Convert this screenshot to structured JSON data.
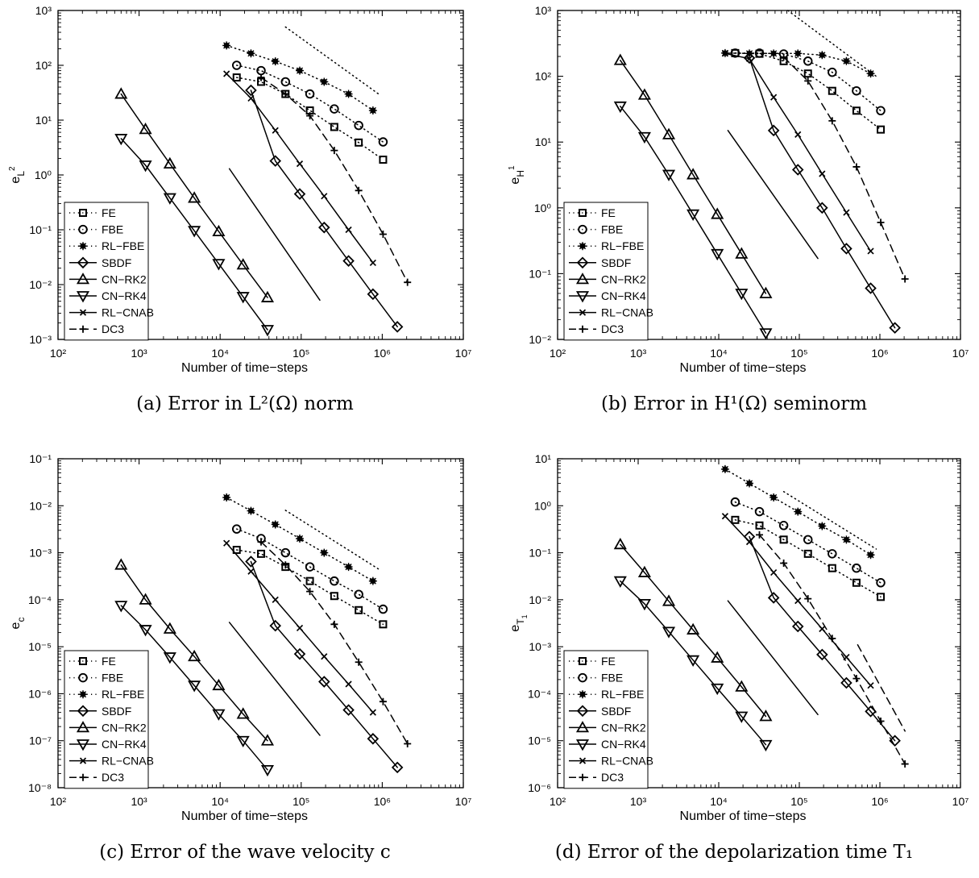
{
  "legend": [
    "FE",
    "FBE",
    "RL−FBE",
    "SBDF",
    "CN−RK2",
    "CN−RK4",
    "RL−CNAB",
    "DC3"
  ],
  "chart_data": [
    {
      "type": "line",
      "caption": "(a) Error in L²(Ω) norm",
      "xlabel": "Number of time−steps",
      "ylabel_base": "e",
      "ylabel_sub": "L",
      "ylabel_sup": "2",
      "xscale": "log",
      "yscale": "log",
      "xlim": [
        100,
        10000000
      ],
      "ylim": [
        0.001,
        1000
      ],
      "xticks": [
        "10²",
        "10³",
        "10⁴",
        "10⁵",
        "10⁶",
        "10⁷"
      ],
      "yticks": [
        "10⁻³",
        "10⁻²",
        "10⁻¹",
        "10⁰",
        "10¹",
        "10²",
        "10³"
      ],
      "series": [
        {
          "name": "FE",
          "style": "dotted",
          "marker": "square",
          "x": [
            16000,
            32000,
            64000,
            128000,
            256000,
            512000,
            1024000
          ],
          "y": [
            60,
            50,
            30,
            15,
            7.5,
            3.9,
            1.9
          ]
        },
        {
          "name": "FBE",
          "style": "dotted",
          "marker": "circle",
          "x": [
            16000,
            32000,
            64000,
            128000,
            256000,
            512000,
            1024000
          ],
          "y": [
            100,
            80,
            50,
            30,
            16,
            8,
            4
          ]
        },
        {
          "name": "RL−FBE",
          "style": "dotted",
          "marker": "star",
          "x": [
            12000,
            24000,
            48000,
            96000,
            192000,
            384000,
            768000
          ],
          "y": [
            230,
            165,
            118,
            80,
            50,
            30,
            15
          ]
        },
        {
          "name": "SBDF",
          "style": "solid",
          "marker": "diamond",
          "x": [
            24000,
            48000,
            96000,
            192000,
            384000,
            768000,
            1536000
          ],
          "y": [
            35,
            1.8,
            0.45,
            0.11,
            0.027,
            0.0067,
            0.0017
          ]
        },
        {
          "name": "CN−RK2",
          "style": "solid",
          "marker": "triangle-up",
          "x": [
            600,
            1200,
            2400,
            4800,
            9600,
            19200,
            38400
          ],
          "y": [
            30,
            6.8,
            1.6,
            0.38,
            0.093,
            0.023,
            0.0058
          ]
        },
        {
          "name": "CN−RK4",
          "style": "solid",
          "marker": "triangle-down",
          "x": [
            600,
            1200,
            2400,
            4800,
            9600,
            19200,
            38400
          ],
          "y": [
            4.6,
            1.5,
            0.38,
            0.096,
            0.024,
            0.006,
            0.0015
          ]
        },
        {
          "name": "RL−CNAB",
          "style": "solid",
          "marker": "x",
          "x": [
            12000,
            24000,
            48000,
            96000,
            192000,
            384000,
            768000
          ],
          "y": [
            70,
            25,
            6.5,
            1.6,
            0.41,
            0.1,
            0.025
          ]
        },
        {
          "name": "DC3",
          "style": "dashed",
          "marker": "plus",
          "x": [
            32000,
            64000,
            128000,
            256000,
            512000,
            1024000,
            2048000
          ],
          "y": [
            60,
            30,
            12,
            2.8,
            0.52,
            0.083,
            0.011
          ]
        }
      ],
      "ref_lines": [
        {
          "style": "dotted",
          "x": [
            64000,
            900000
          ],
          "y": [
            500,
            30
          ]
        },
        {
          "style": "solid",
          "x": [
            13000,
            170000
          ],
          "y": [
            1.3,
            0.0052
          ]
        }
      ]
    },
    {
      "type": "line",
      "caption": "(b) Error in H¹(Ω) seminorm",
      "xlabel": "Number of time−steps",
      "ylabel_base": "e",
      "ylabel_sub": "H",
      "ylabel_sup": "1",
      "xscale": "log",
      "yscale": "log",
      "xlim": [
        100,
        10000000
      ],
      "ylim": [
        0.01,
        1000
      ],
      "xticks": [
        "10²",
        "10³",
        "10⁴",
        "10⁵",
        "10⁶",
        "10⁷"
      ],
      "yticks": [
        "10⁻²",
        "10⁻¹",
        "10⁰",
        "10¹",
        "10²",
        "10³"
      ],
      "series": [
        {
          "name": "FE",
          "style": "dotted",
          "marker": "square",
          "x": [
            16000,
            32000,
            64000,
            128000,
            256000,
            512000,
            1024000
          ],
          "y": [
            225,
            220,
            170,
            110,
            60,
            30,
            15.5
          ]
        },
        {
          "name": "FBE",
          "style": "dotted",
          "marker": "circle",
          "x": [
            16000,
            32000,
            64000,
            128000,
            256000,
            512000,
            1024000
          ],
          "y": [
            225,
            225,
            218,
            170,
            115,
            60,
            30
          ]
        },
        {
          "name": "RL−FBE",
          "style": "dotted",
          "marker": "star",
          "x": [
            12000,
            24000,
            48000,
            96000,
            192000,
            384000,
            768000
          ],
          "y": [
            225,
            222,
            222,
            222,
            210,
            170,
            110
          ]
        },
        {
          "name": "SBDF",
          "style": "solid",
          "marker": "diamond",
          "x": [
            24000,
            48000,
            96000,
            192000,
            384000,
            768000,
            1536000
          ],
          "y": [
            190,
            15,
            3.8,
            1.0,
            0.24,
            0.06,
            0.015
          ]
        },
        {
          "name": "CN−RK2",
          "style": "solid",
          "marker": "triangle-up",
          "x": [
            600,
            1200,
            2400,
            4800,
            9600,
            19200,
            38400
          ],
          "y": [
            175,
            52,
            13,
            3.2,
            0.8,
            0.2,
            0.05
          ]
        },
        {
          "name": "CN−RK4",
          "style": "solid",
          "marker": "triangle-down",
          "x": [
            600,
            1200,
            2400,
            4800,
            9600,
            19200,
            38400
          ],
          "y": [
            35,
            12,
            3.2,
            0.8,
            0.2,
            0.05,
            0.0125
          ]
        },
        {
          "name": "RL−CNAB",
          "style": "solid",
          "marker": "x",
          "x": [
            12000,
            24000,
            48000,
            96000,
            192000,
            384000,
            768000
          ],
          "y": [
            222,
            185,
            48,
            13,
            3.3,
            0.85,
            0.22
          ]
        },
        {
          "name": "DC3",
          "style": "dashed",
          "marker": "plus",
          "x": [
            64000,
            128000,
            256000,
            512000,
            1024000,
            2048000
          ],
          "y": [
            195,
            85,
            21,
            4.2,
            0.6,
            0.083
          ]
        }
      ],
      "ref_lines": [
        {
          "style": "dotted",
          "x": [
            72000,
            900000
          ],
          "y": [
            1000,
            100
          ]
        },
        {
          "style": "solid",
          "x": [
            13000,
            170000
          ],
          "y": [
            15,
            0.17
          ]
        }
      ]
    },
    {
      "type": "line",
      "caption": "(c) Error of the wave velocity c",
      "xlabel": "Number of time−steps",
      "ylabel_base": "e",
      "ylabel_sub": "c",
      "ylabel_sup": "",
      "xscale": "log",
      "yscale": "log",
      "xlim": [
        100,
        10000000
      ],
      "ylim": [
        1e-08,
        0.1
      ],
      "xticks": [
        "10²",
        "10³",
        "10⁴",
        "10⁵",
        "10⁶",
        "10⁷"
      ],
      "yticks": [
        "10⁻⁸",
        "10⁻⁷",
        "10⁻⁶",
        "10⁻⁵",
        "10⁻⁴",
        "10⁻³",
        "10⁻²",
        "10⁻¹"
      ],
      "series": [
        {
          "name": "FE",
          "style": "dotted",
          "marker": "square",
          "x": [
            16000,
            32000,
            64000,
            128000,
            256000,
            512000,
            1024000
          ],
          "y": [
            0.00115,
            0.00095,
            0.0005,
            0.00025,
            0.00012,
            6e-05,
            3e-05
          ]
        },
        {
          "name": "FBE",
          "style": "dotted",
          "marker": "circle",
          "x": [
            16000,
            32000,
            64000,
            128000,
            256000,
            512000,
            1024000
          ],
          "y": [
            0.0032,
            0.002,
            0.001,
            0.0005,
            0.00025,
            0.00013,
            6.3e-05
          ]
        },
        {
          "name": "RL−FBE",
          "style": "dotted",
          "marker": "star",
          "x": [
            12000,
            24000,
            48000,
            96000,
            192000,
            384000,
            768000
          ],
          "y": [
            0.015,
            0.0078,
            0.004,
            0.002,
            0.001,
            0.0005,
            0.00025
          ]
        },
        {
          "name": "SBDF",
          "style": "solid",
          "marker": "diamond",
          "x": [
            24000,
            48000,
            96000,
            192000,
            384000,
            768000,
            1536000
          ],
          "y": [
            0.00065,
            2.8e-05,
            7e-06,
            1.8e-06,
            4.5e-07,
            1.1e-07,
            2.7e-08
          ]
        },
        {
          "name": "CN−RK2",
          "style": "solid",
          "marker": "triangle-up",
          "x": [
            600,
            1200,
            2400,
            4800,
            9600,
            19200,
            38400
          ],
          "y": [
            0.00055,
            0.0001,
            2.4e-05,
            6.2e-06,
            1.5e-06,
            3.7e-07,
            1e-07
          ]
        },
        {
          "name": "CN−RK4",
          "style": "solid",
          "marker": "triangle-down",
          "x": [
            600,
            1200,
            2400,
            4800,
            9600,
            19200,
            38400
          ],
          "y": [
            7.5e-05,
            2.3e-05,
            6e-06,
            1.5e-06,
            3.7e-07,
            1e-07,
            2.4e-08
          ]
        },
        {
          "name": "RL−CNAB",
          "style": "solid",
          "marker": "x",
          "x": [
            12000,
            24000,
            48000,
            96000,
            192000,
            384000,
            768000
          ],
          "y": [
            0.0016,
            0.0004,
            0.0001,
            2.5e-05,
            6.2e-06,
            1.6e-06,
            4e-07
          ]
        },
        {
          "name": "DC3",
          "style": "dashed",
          "marker": "plus",
          "x": [
            32000,
            64000,
            128000,
            256000,
            512000,
            1024000,
            2048000
          ],
          "y": [
            0.0017,
            0.00055,
            0.00015,
            3e-05,
            4.7e-06,
            6.8e-07,
            8.6e-08
          ]
        }
      ],
      "ref_lines": [
        {
          "style": "dotted",
          "x": [
            64000,
            900000
          ],
          "y": [
            0.008,
            0.00045
          ]
        },
        {
          "style": "solid",
          "x": [
            13000,
            170000
          ],
          "y": [
            3.3e-05,
            1.3e-07
          ]
        }
      ]
    },
    {
      "type": "line",
      "caption": "(d) Error of the depolarization time T₁",
      "xlabel": "Number of time−steps",
      "ylabel_base": "e",
      "ylabel_sub": "T",
      "ylabel_sup": "",
      "ylabel_subsub": "1",
      "xscale": "log",
      "yscale": "log",
      "xlim": [
        100,
        10000000
      ],
      "ylim": [
        1e-06,
        10
      ],
      "xticks": [
        "10²",
        "10³",
        "10⁴",
        "10⁵",
        "10⁶",
        "10⁷"
      ],
      "yticks": [
        "10⁻⁶",
        "10⁻⁵",
        "10⁻⁴",
        "10⁻³",
        "10⁻²",
        "10⁻¹",
        "10⁰",
        "10¹"
      ],
      "series": [
        {
          "name": "FE",
          "style": "dotted",
          "marker": "square",
          "x": [
            16000,
            32000,
            64000,
            128000,
            256000,
            512000,
            1024000
          ],
          "y": [
            0.5,
            0.38,
            0.19,
            0.095,
            0.047,
            0.023,
            0.0115
          ]
        },
        {
          "name": "FBE",
          "style": "dotted",
          "marker": "circle",
          "x": [
            16000,
            32000,
            64000,
            128000,
            256000,
            512000,
            1024000
          ],
          "y": [
            1.2,
            0.75,
            0.38,
            0.19,
            0.095,
            0.047,
            0.023
          ]
        },
        {
          "name": "RL−FBE",
          "style": "dotted",
          "marker": "star",
          "x": [
            12000,
            24000,
            48000,
            96000,
            192000,
            384000,
            768000
          ],
          "y": [
            6,
            3,
            1.5,
            0.75,
            0.37,
            0.19,
            0.09
          ]
        },
        {
          "name": "SBDF",
          "style": "solid",
          "marker": "diamond",
          "x": [
            24000,
            48000,
            96000,
            192000,
            384000,
            768000,
            1536000
          ],
          "y": [
            0.22,
            0.011,
            0.0027,
            0.00068,
            0.00017,
            4.2e-05,
            1e-05
          ]
        },
        {
          "name": "CN−RK2",
          "style": "solid",
          "marker": "triangle-up",
          "x": [
            600,
            1200,
            2400,
            4800,
            9600,
            19200,
            38400
          ],
          "y": [
            0.15,
            0.038,
            0.0093,
            0.0023,
            0.00058,
            0.00014,
            3.3e-05
          ]
        },
        {
          "name": "CN−RK4",
          "style": "solid",
          "marker": "triangle-down",
          "x": [
            600,
            1200,
            2400,
            4800,
            9600,
            19200,
            38400
          ],
          "y": [
            0.025,
            0.0082,
            0.0021,
            0.00052,
            0.00013,
            3.3e-05,
            8.2e-06
          ]
        },
        {
          "name": "RL−CNAB",
          "style": "solid",
          "marker": "x",
          "x": [
            12000,
            24000,
            48000,
            96000,
            192000,
            384000,
            768000
          ],
          "y": [
            0.6,
            0.17,
            0.038,
            0.0095,
            0.0024,
            0.0006,
            0.00015
          ]
        },
        {
          "name": "DC3",
          "style": "dashed",
          "marker": "plus",
          "x": [
            32000,
            64000,
            128000,
            256000,
            512000,
            1024000,
            2048000
          ],
          "y": [
            0.24,
            0.06,
            0.0105,
            0.0015,
            0.00021,
            2.6e-05,
            3.2e-06
          ]
        }
      ],
      "ref_lines": [
        {
          "style": "dotted",
          "x": [
            64000,
            900000
          ],
          "y": [
            2.0,
            0.12
          ]
        },
        {
          "style": "solid",
          "x": [
            13000,
            170000
          ],
          "y": [
            0.0095,
            3.6e-05
          ]
        },
        {
          "style": "dashed",
          "x": [
            530000,
            2050000
          ],
          "y": [
            0.0011,
            1.6e-05
          ]
        }
      ]
    }
  ]
}
